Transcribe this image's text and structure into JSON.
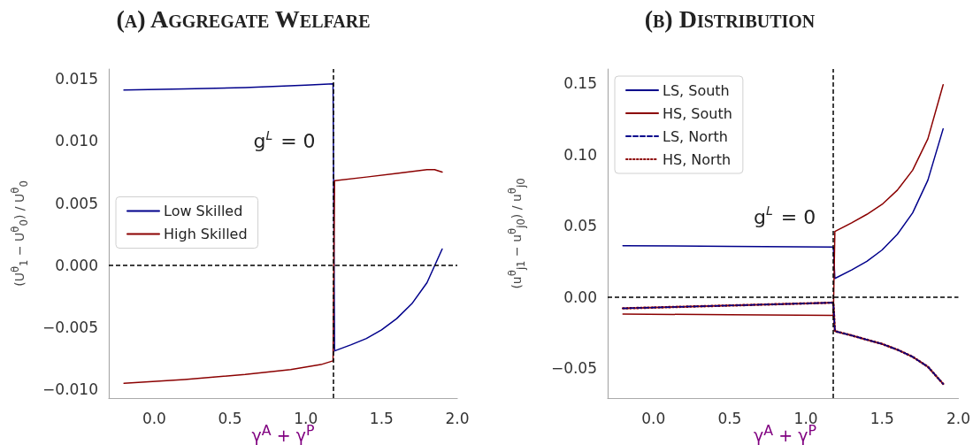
{
  "chart_data": [
    {
      "type": "line",
      "title": "(a) Aggregate Welfare",
      "xlabel": "γ$^{A}$ + γ$^{P}$",
      "ylabel": "(U$^{θ}$$_{1}$ − U$^{θ}$$_{0}$) / U$^{θ}$$_{0}$",
      "xlim": [
        -0.3,
        2.0
      ],
      "xticks": [
        {
          "value": 0,
          "label": "0.0"
        },
        {
          "value": 0.5,
          "label": "0.5"
        },
        {
          "value": 1,
          "label": "1.0"
        },
        {
          "value": 1.5,
          "label": "1.5"
        },
        {
          "value": 2,
          "label": "2.0"
        }
      ],
      "ylim": [
        -0.0107,
        0.0158
      ],
      "yticks": [
        {
          "value": -0.01,
          "label": "−0.010"
        },
        {
          "value": -0.005,
          "label": "−0.005"
        },
        {
          "value": 0,
          "label": "0.000"
        },
        {
          "value": 0.005,
          "label": "0.005"
        },
        {
          "value": 0.01,
          "label": "0.010"
        },
        {
          "value": 0.015,
          "label": "0.015"
        }
      ],
      "grid": false,
      "legend": "left",
      "marker": "none",
      "ref_lines": [
        {
          "axis": "x",
          "value": 1.18,
          "color": "#000000",
          "line_style": "dashed"
        },
        {
          "axis": "y",
          "value": 0,
          "color": "#000000",
          "line_style": "dashed"
        }
      ],
      "annotations": [
        "g$^{L}$ = 0"
      ],
      "series": [
        {
          "name": "Low Skilled",
          "color": "#00008b",
          "line_style": "solid",
          "x": [
            -0.2,
            0.2,
            0.6,
            1.0,
            1.18,
            1.19,
            1.3,
            1.4,
            1.5,
            1.6,
            1.7,
            1.8,
            1.9
          ],
          "values": [
            0.0141,
            0.0142,
            0.0143,
            0.0145,
            0.0146,
            -0.0069,
            -0.0064,
            -0.0059,
            -0.0052,
            -0.0043,
            -0.0031,
            -0.0014,
            0.0013
          ]
        },
        {
          "name": "High Skilled",
          "color": "#8b0000",
          "line_style": "solid",
          "x": [
            -0.2,
            0.2,
            0.6,
            0.9,
            1.1,
            1.18,
            1.19,
            1.4,
            1.6,
            1.8,
            1.85,
            1.9
          ],
          "values": [
            -0.0095,
            -0.0092,
            -0.0088,
            -0.0084,
            -0.008,
            -0.0077,
            0.0068,
            0.0071,
            0.0074,
            0.0077,
            0.0077,
            0.0075
          ]
        }
      ]
    },
    {
      "type": "line",
      "title": "(b) Distribution",
      "xlabel": "γ$^{A}$ + γ$^{P}$",
      "ylabel": "(u$^{θ}$$_{j1}$ − u$^{θ}$$_{j0}$) / u$^{θ}$$_{j0}$",
      "xlim": [
        -0.3,
        2.0
      ],
      "xticks": [
        {
          "value": 0,
          "label": "0.0"
        },
        {
          "value": 0.5,
          "label": "0.5"
        },
        {
          "value": 1,
          "label": "1.0"
        },
        {
          "value": 1.5,
          "label": "1.5"
        },
        {
          "value": 2,
          "label": "2.0"
        }
      ],
      "ylim": [
        -0.071,
        0.16
      ],
      "yticks": [
        {
          "value": -0.05,
          "label": "−0.05"
        },
        {
          "value": 0,
          "label": "0.00"
        },
        {
          "value": 0.05,
          "label": "0.05"
        },
        {
          "value": 0.1,
          "label": "0.10"
        },
        {
          "value": 0.15,
          "label": "0.15"
        }
      ],
      "grid": false,
      "legend": "top left",
      "marker": "none",
      "ref_lines": [
        {
          "axis": "x",
          "value": 1.18,
          "color": "#000000",
          "line_style": "dashed"
        },
        {
          "axis": "y",
          "value": 0,
          "color": "#000000",
          "line_style": "dashed"
        }
      ],
      "annotations": [
        "g$^{L}$ = 0"
      ],
      "series": [
        {
          "name": "LS, South",
          "color": "#00008b",
          "line_style": "solid",
          "x": [
            -0.2,
            0.5,
            1.18,
            1.19,
            1.3,
            1.4,
            1.5,
            1.6,
            1.7,
            1.8,
            1.9
          ],
          "values": [
            0.036,
            0.0355,
            0.035,
            0.013,
            0.019,
            0.025,
            0.033,
            0.044,
            0.059,
            0.082,
            0.118
          ]
        },
        {
          "name": "HS, South",
          "color": "#8b0000",
          "line_style": "solid",
          "x": [
            -0.2,
            0.5,
            1.18,
            1.19,
            1.3,
            1.4,
            1.5,
            1.6,
            1.7,
            1.8,
            1.9
          ],
          "values": [
            -0.012,
            -0.0125,
            -0.013,
            0.046,
            0.052,
            0.058,
            0.065,
            0.075,
            0.089,
            0.111,
            0.149
          ]
        },
        {
          "name": "LS, North",
          "color": "#00008b",
          "line_style": "dashed",
          "x": [
            -0.2,
            0.5,
            1.18,
            1.19,
            1.3,
            1.4,
            1.5,
            1.6,
            1.7,
            1.8,
            1.9
          ],
          "values": [
            -0.008,
            -0.006,
            -0.004,
            -0.024,
            -0.027,
            -0.03,
            -0.033,
            -0.037,
            -0.042,
            -0.049,
            -0.061
          ]
        },
        {
          "name": "HS, North",
          "color": "#8b0000",
          "line_style": "dotted",
          "x": [
            -0.2,
            0.5,
            1.18,
            1.19,
            1.3,
            1.4,
            1.5,
            1.6,
            1.7,
            1.8,
            1.9
          ],
          "values": [
            -0.008,
            -0.006,
            -0.004,
            -0.024,
            -0.027,
            -0.03,
            -0.033,
            -0.037,
            -0.042,
            -0.049,
            -0.061
          ]
        }
      ]
    }
  ]
}
